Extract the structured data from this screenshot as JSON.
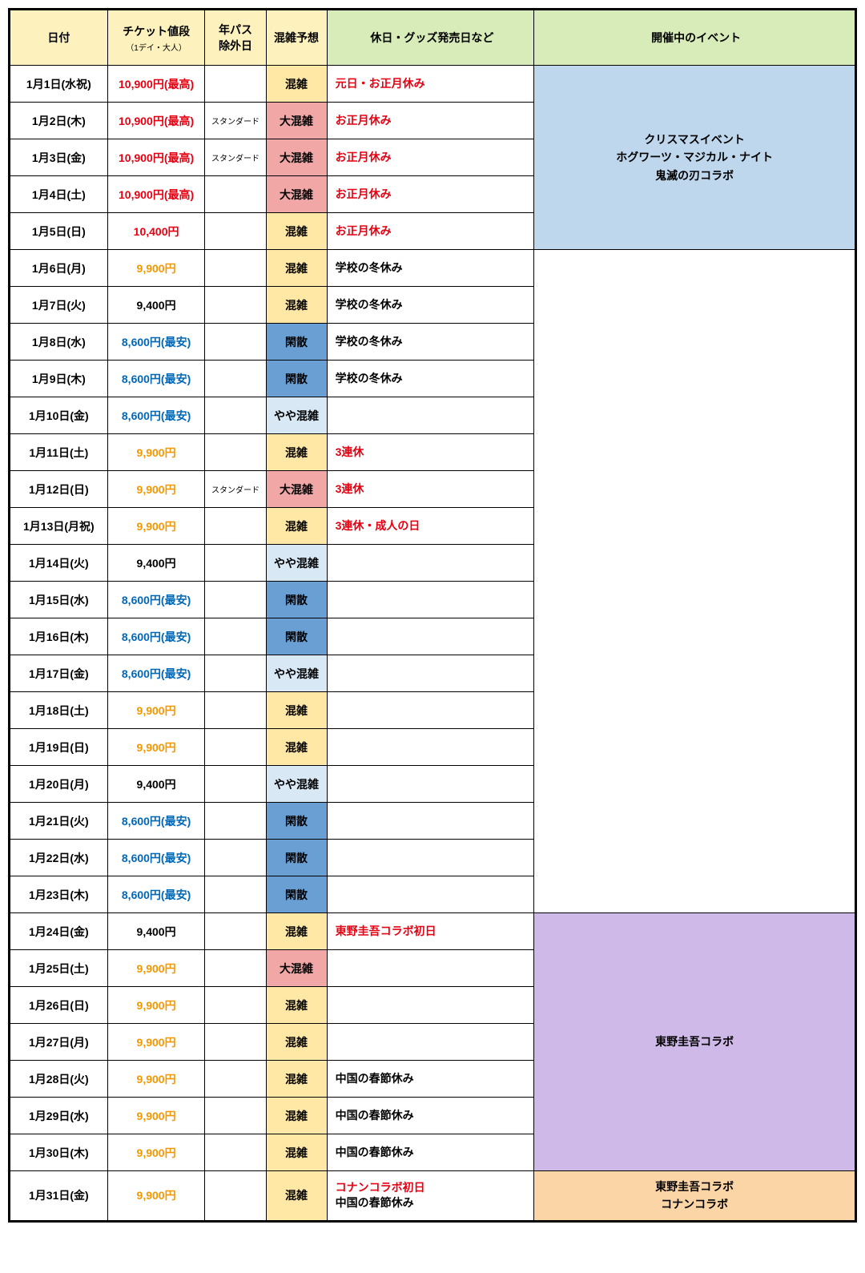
{
  "columns": {
    "date": "日付",
    "price": "チケット値段",
    "price_sub": "（1デイ・大人）",
    "annual": "年パス\n除外日",
    "crowd": "混雑予想",
    "notes": "休日・グッズ発売日など",
    "event": "開催中のイベント"
  },
  "col_widths": {
    "date": "120px",
    "price": "120px",
    "annual": "75px",
    "crowd": "75px",
    "notes": "255px",
    "event": "395px"
  },
  "header_bg": {
    "date": "#fdf1bd",
    "price": "#fdf1bd",
    "annual": "#fdf1bd",
    "crowd": "#fdf1bd",
    "notes": "#d8ecb9",
    "event": "#d8ecb9"
  },
  "price_colors": {
    "red": "#e60012",
    "orange": "#f39800",
    "blue": "#0068b7",
    "black": "#000000"
  },
  "crowd_bg": {
    "konzatsu": "#ffe8a6",
    "daikonzatsu": "#f2a7a7",
    "yaya": "#d8e8f5",
    "kansan": "#6a9fd4"
  },
  "notes_color": {
    "red": "#e60012",
    "black": "#000000"
  },
  "event_bg": {
    "xmas": "#bfd7ed",
    "higashino": "#cfb9e8",
    "conan": "#fcd5a6"
  },
  "events": {
    "xmas": "クリスマスイベント\nホグワーツ・マジカル・ナイト\n鬼滅の刃コラボ",
    "higashino": "東野圭吾コラボ",
    "conan": "東野圭吾コラボ\nコナンコラボ"
  },
  "rows": [
    {
      "date": "1月1日(水祝)",
      "price": "10,900円(最高)",
      "price_c": "red",
      "annual": "",
      "crowd": "混雑",
      "crowd_k": "konzatsu",
      "notes": "元日・お正月休み",
      "notes_c": "red",
      "event": "xmas",
      "event_span": 5
    },
    {
      "date": "1月2日(木)",
      "price": "10,900円(最高)",
      "price_c": "red",
      "annual": "スタンダード",
      "crowd": "大混雑",
      "crowd_k": "daikonzatsu",
      "notes": "お正月休み",
      "notes_c": "red"
    },
    {
      "date": "1月3日(金)",
      "price": "10,900円(最高)",
      "price_c": "red",
      "annual": "スタンダード",
      "crowd": "大混雑",
      "crowd_k": "daikonzatsu",
      "notes": "お正月休み",
      "notes_c": "red"
    },
    {
      "date": "1月4日(土)",
      "price": "10,900円(最高)",
      "price_c": "red",
      "annual": "",
      "crowd": "大混雑",
      "crowd_k": "daikonzatsu",
      "notes": "お正月休み",
      "notes_c": "red"
    },
    {
      "date": "1月5日(日)",
      "price": "10,400円",
      "price_c": "red",
      "annual": "",
      "crowd": "混雑",
      "crowd_k": "konzatsu",
      "notes": "お正月休み",
      "notes_c": "red"
    },
    {
      "date": "1月6日(月)",
      "price": "9,900円",
      "price_c": "orange",
      "annual": "",
      "crowd": "混雑",
      "crowd_k": "konzatsu",
      "notes": "学校の冬休み",
      "notes_c": "black",
      "event": "none",
      "event_span": 18
    },
    {
      "date": "1月7日(火)",
      "price": "9,400円",
      "price_c": "black",
      "annual": "",
      "crowd": "混雑",
      "crowd_k": "konzatsu",
      "notes": "学校の冬休み",
      "notes_c": "black"
    },
    {
      "date": "1月8日(水)",
      "price": "8,600円(最安)",
      "price_c": "blue",
      "annual": "",
      "crowd": "閑散",
      "crowd_k": "kansan",
      "notes": "学校の冬休み",
      "notes_c": "black"
    },
    {
      "date": "1月9日(木)",
      "price": "8,600円(最安)",
      "price_c": "blue",
      "annual": "",
      "crowd": "閑散",
      "crowd_k": "kansan",
      "notes": "学校の冬休み",
      "notes_c": "black"
    },
    {
      "date": "1月10日(金)",
      "price": "8,600円(最安)",
      "price_c": "blue",
      "annual": "",
      "crowd": "やや混雑",
      "crowd_k": "yaya",
      "notes": "",
      "notes_c": "black"
    },
    {
      "date": "1月11日(土)",
      "price": "9,900円",
      "price_c": "orange",
      "annual": "",
      "crowd": "混雑",
      "crowd_k": "konzatsu",
      "notes": "3連休",
      "notes_c": "red"
    },
    {
      "date": "1月12日(日)",
      "price": "9,900円",
      "price_c": "orange",
      "annual": "スタンダード",
      "crowd": "大混雑",
      "crowd_k": "daikonzatsu",
      "notes": "3連休",
      "notes_c": "red"
    },
    {
      "date": "1月13日(月祝)",
      "price": "9,900円",
      "price_c": "orange",
      "annual": "",
      "crowd": "混雑",
      "crowd_k": "konzatsu",
      "notes": "3連休・成人の日",
      "notes_c": "red"
    },
    {
      "date": "1月14日(火)",
      "price": "9,400円",
      "price_c": "black",
      "annual": "",
      "crowd": "やや混雑",
      "crowd_k": "yaya",
      "notes": "",
      "notes_c": "black"
    },
    {
      "date": "1月15日(水)",
      "price": "8,600円(最安)",
      "price_c": "blue",
      "annual": "",
      "crowd": "閑散",
      "crowd_k": "kansan",
      "notes": "",
      "notes_c": "black"
    },
    {
      "date": "1月16日(木)",
      "price": "8,600円(最安)",
      "price_c": "blue",
      "annual": "",
      "crowd": "閑散",
      "crowd_k": "kansan",
      "notes": "",
      "notes_c": "black"
    },
    {
      "date": "1月17日(金)",
      "price": "8,600円(最安)",
      "price_c": "blue",
      "annual": "",
      "crowd": "やや混雑",
      "crowd_k": "yaya",
      "notes": "",
      "notes_c": "black"
    },
    {
      "date": "1月18日(土)",
      "price": "9,900円",
      "price_c": "orange",
      "annual": "",
      "crowd": "混雑",
      "crowd_k": "konzatsu",
      "notes": "",
      "notes_c": "black"
    },
    {
      "date": "1月19日(日)",
      "price": "9,900円",
      "price_c": "orange",
      "annual": "",
      "crowd": "混雑",
      "crowd_k": "konzatsu",
      "notes": "",
      "notes_c": "black"
    },
    {
      "date": "1月20日(月)",
      "price": "9,400円",
      "price_c": "black",
      "annual": "",
      "crowd": "やや混雑",
      "crowd_k": "yaya",
      "notes": "",
      "notes_c": "black"
    },
    {
      "date": "1月21日(火)",
      "price": "8,600円(最安)",
      "price_c": "blue",
      "annual": "",
      "crowd": "閑散",
      "crowd_k": "kansan",
      "notes": "",
      "notes_c": "black"
    },
    {
      "date": "1月22日(水)",
      "price": "8,600円(最安)",
      "price_c": "blue",
      "annual": "",
      "crowd": "閑散",
      "crowd_k": "kansan",
      "notes": "",
      "notes_c": "black"
    },
    {
      "date": "1月23日(木)",
      "price": "8,600円(最安)",
      "price_c": "blue",
      "annual": "",
      "crowd": "閑散",
      "crowd_k": "kansan",
      "notes": "",
      "notes_c": "black"
    },
    {
      "date": "1月24日(金)",
      "price": "9,400円",
      "price_c": "black",
      "annual": "",
      "crowd": "混雑",
      "crowd_k": "konzatsu",
      "notes": "東野圭吾コラボ初日",
      "notes_c": "red",
      "event": "higashino",
      "event_span": 7
    },
    {
      "date": "1月25日(土)",
      "price": "9,900円",
      "price_c": "orange",
      "annual": "",
      "crowd": "大混雑",
      "crowd_k": "daikonzatsu",
      "notes": "",
      "notes_c": "black"
    },
    {
      "date": "1月26日(日)",
      "price": "9,900円",
      "price_c": "orange",
      "annual": "",
      "crowd": "混雑",
      "crowd_k": "konzatsu",
      "notes": "",
      "notes_c": "black"
    },
    {
      "date": "1月27日(月)",
      "price": "9,900円",
      "price_c": "orange",
      "annual": "",
      "crowd": "混雑",
      "crowd_k": "konzatsu",
      "notes": "",
      "notes_c": "black"
    },
    {
      "date": "1月28日(火)",
      "price": "9,900円",
      "price_c": "orange",
      "annual": "",
      "crowd": "混雑",
      "crowd_k": "konzatsu",
      "notes": "中国の春節休み",
      "notes_c": "black"
    },
    {
      "date": "1月29日(水)",
      "price": "9,900円",
      "price_c": "orange",
      "annual": "",
      "crowd": "混雑",
      "crowd_k": "konzatsu",
      "notes": "中国の春節休み",
      "notes_c": "black"
    },
    {
      "date": "1月30日(木)",
      "price": "9,900円",
      "price_c": "orange",
      "annual": "",
      "crowd": "混雑",
      "crowd_k": "konzatsu",
      "notes": "中国の春節休み",
      "notes_c": "black"
    },
    {
      "date": "1月31日(金)",
      "price": "9,900円",
      "price_c": "orange",
      "annual": "",
      "crowd": "混雑",
      "crowd_k": "konzatsu",
      "notes": "コナンコラボ初日\n中国の春節休み",
      "notes_c": "mixed",
      "event": "conan",
      "event_span": 1
    }
  ]
}
